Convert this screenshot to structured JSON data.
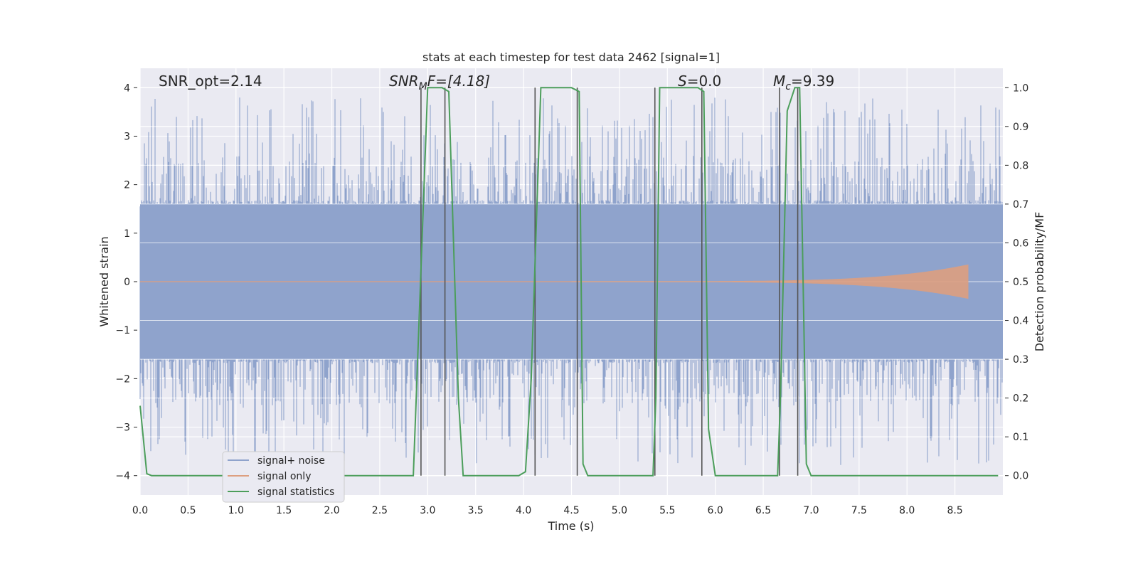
{
  "chart_data": {
    "type": "line",
    "title": "stats at each timestep for test data 2462 [signal=1]",
    "xlabel": "Time (s)",
    "ylabel": "Whitened strain",
    "y2label": "Detection probability/MF",
    "xlim": [
      0,
      9.0
    ],
    "ylim": [
      -4.4,
      4.4
    ],
    "y2lim": [
      -0.05,
      1.05
    ],
    "x_ticks": [
      "0.0",
      "0.5",
      "1.0",
      "1.5",
      "2.0",
      "2.5",
      "3.0",
      "3.5",
      "4.0",
      "4.5",
      "5.0",
      "5.5",
      "6.0",
      "6.5",
      "7.0",
      "7.5",
      "8.0",
      "8.5"
    ],
    "y_ticks": [
      "−4",
      "−3",
      "−2",
      "−1",
      "0",
      "1",
      "2",
      "3",
      "4"
    ],
    "y2_ticks": [
      "0.0",
      "0.1",
      "0.2",
      "0.3",
      "0.4",
      "0.5",
      "0.6",
      "0.7",
      "0.8",
      "0.9",
      "1.0"
    ],
    "grid": true,
    "legend_position": "lower-left",
    "annotations": {
      "snr_opt": "SNR_opt=2.14",
      "snr_mf_base": "SNR",
      "snr_mf_sub": "M",
      "snr_mf_rest": "F=[4.18]",
      "s_italic": "S",
      "s_rest": "=0.0",
      "mc_base": "M",
      "mc_sub": "c",
      "mc_rest": "=9.39"
    },
    "series": [
      {
        "name": "signal+ noise",
        "color": "#8fa3cc",
        "style": "noise",
        "band_abs_max": 1.6,
        "spike_range": [
          2.0,
          3.8
        ]
      },
      {
        "name": "signal only",
        "color": "#dd9f80",
        "style": "chirp",
        "x_start": 4.5,
        "x_end": 8.65,
        "max_amplitude": 0.35
      },
      {
        "name": "signal statistics",
        "color": "#4c9e5b",
        "axis": "right",
        "x": [
          0.0,
          0.07,
          0.12,
          2.85,
          2.88,
          3.0,
          3.05,
          3.15,
          3.22,
          3.32,
          3.37,
          3.95,
          4.02,
          4.08,
          4.18,
          4.25,
          4.5,
          4.58,
          4.62,
          4.67,
          5.35,
          5.38,
          5.42,
          5.5,
          5.82,
          5.88,
          5.93,
          6.0,
          6.05,
          6.65,
          6.68,
          6.75,
          6.83,
          6.88,
          6.95,
          7.0,
          8.95
        ],
        "values": [
          0.18,
          0.005,
          0.0,
          0.0,
          0.2,
          1.0,
          1.0,
          1.0,
          0.99,
          0.2,
          0.0,
          0.0,
          0.01,
          0.25,
          1.0,
          1.0,
          1.0,
          0.99,
          0.03,
          0.0,
          0.0,
          0.2,
          1.0,
          1.0,
          1.0,
          0.99,
          0.12,
          0.0,
          0.0,
          0.0,
          0.2,
          0.94,
          1.0,
          1.0,
          0.03,
          0.0,
          0.0
        ]
      }
    ],
    "vlines": {
      "color": "#555555",
      "x": [
        2.93,
        3.18,
        4.12,
        4.56,
        5.37,
        5.86,
        6.67,
        6.86
      ]
    }
  }
}
